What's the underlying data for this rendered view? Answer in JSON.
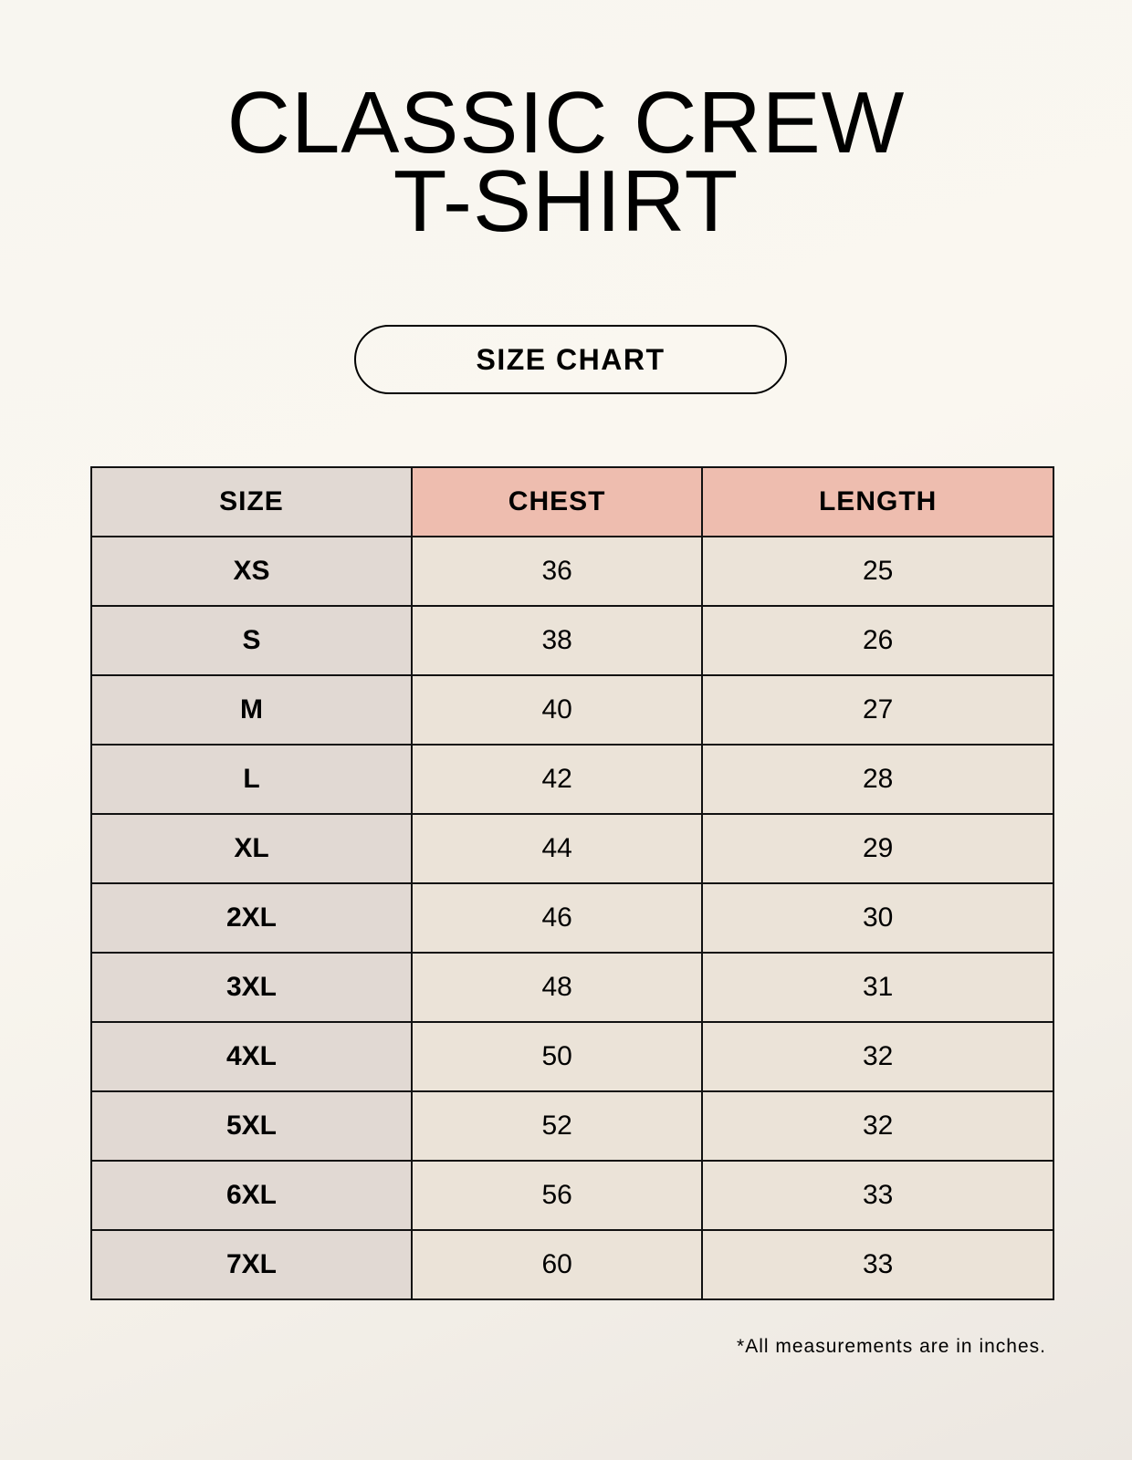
{
  "title_lines": [
    "CLASSIC CREW",
    "T-SHIRT"
  ],
  "subtitle": "SIZE CHART",
  "colors": {
    "size_column": "#e1d9d3",
    "header_accent": "#eebdaf",
    "value_cells": "#ebe3d8"
  },
  "table": {
    "headers": [
      "SIZE",
      "CHEST",
      "LENGTH"
    ],
    "rows": [
      [
        "XS",
        "36",
        "25"
      ],
      [
        "S",
        "38",
        "26"
      ],
      [
        "M",
        "40",
        "27"
      ],
      [
        "L",
        "42",
        "28"
      ],
      [
        "XL",
        "44",
        "29"
      ],
      [
        "2XL",
        "46",
        "30"
      ],
      [
        "3XL",
        "48",
        "31"
      ],
      [
        "4XL",
        "50",
        "32"
      ],
      [
        "5XL",
        "52",
        "32"
      ],
      [
        "6XL",
        "56",
        "33"
      ],
      [
        "7XL",
        "60",
        "33"
      ]
    ]
  },
  "footnote": "*All measurements are in inches."
}
